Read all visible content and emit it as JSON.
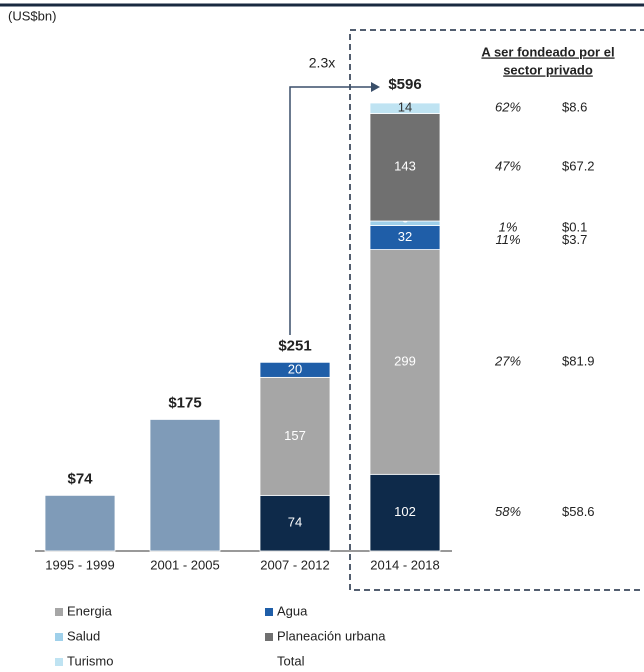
{
  "chart_data": {
    "type": "stacked_bar",
    "unit_label": "(US$bn)",
    "annotation": "2.3x",
    "categories": [
      "1995 - 1999",
      "2001 - 2005",
      "2007 - 2012",
      "2014 - 2018"
    ],
    "series": [
      {
        "color": "#7f9bb8",
        "values": [
          74,
          175,
          null,
          null
        ]
      },
      {
        "name": "Total",
        "color": "#0e2a4a",
        "values": [
          null,
          null,
          74,
          102
        ]
      },
      {
        "name": "Energia",
        "color": "#a6a6a6",
        "values": [
          null,
          null,
          157,
          299
        ]
      },
      {
        "name": "Agua",
        "color": "#1f5ea8",
        "values": [
          null,
          null,
          20,
          32
        ]
      },
      {
        "name": "Salud",
        "color": "#9fd0ea",
        "values": [
          null,
          null,
          null,
          6
        ]
      },
      {
        "name": "Planeación urbana",
        "color": "#707070",
        "values": [
          null,
          null,
          null,
          143
        ]
      },
      {
        "name": "Turismo",
        "color": "#bfe3f2",
        "values": [
          null,
          null,
          null,
          14
        ]
      }
    ],
    "totals": {
      "values": [
        74,
        175,
        251,
        596
      ],
      "value_labels": [
        "$74",
        "$175",
        "$251",
        "$596"
      ]
    },
    "private_funding": {
      "title": [
        "A ser fondeado por el",
        "sector privado"
      ],
      "rows": [
        {
          "share": "58%",
          "amount": "$58.6"
        },
        {
          "share": "27%",
          "amount": "$81.9"
        },
        {
          "share": "11%",
          "amount": "$3.7"
        },
        {
          "share": "1%",
          "amount": "$0.1"
        },
        {
          "share": "47%",
          "amount": "$67.2"
        },
        {
          "share": "62%",
          "amount": "$8.6"
        }
      ]
    }
  }
}
